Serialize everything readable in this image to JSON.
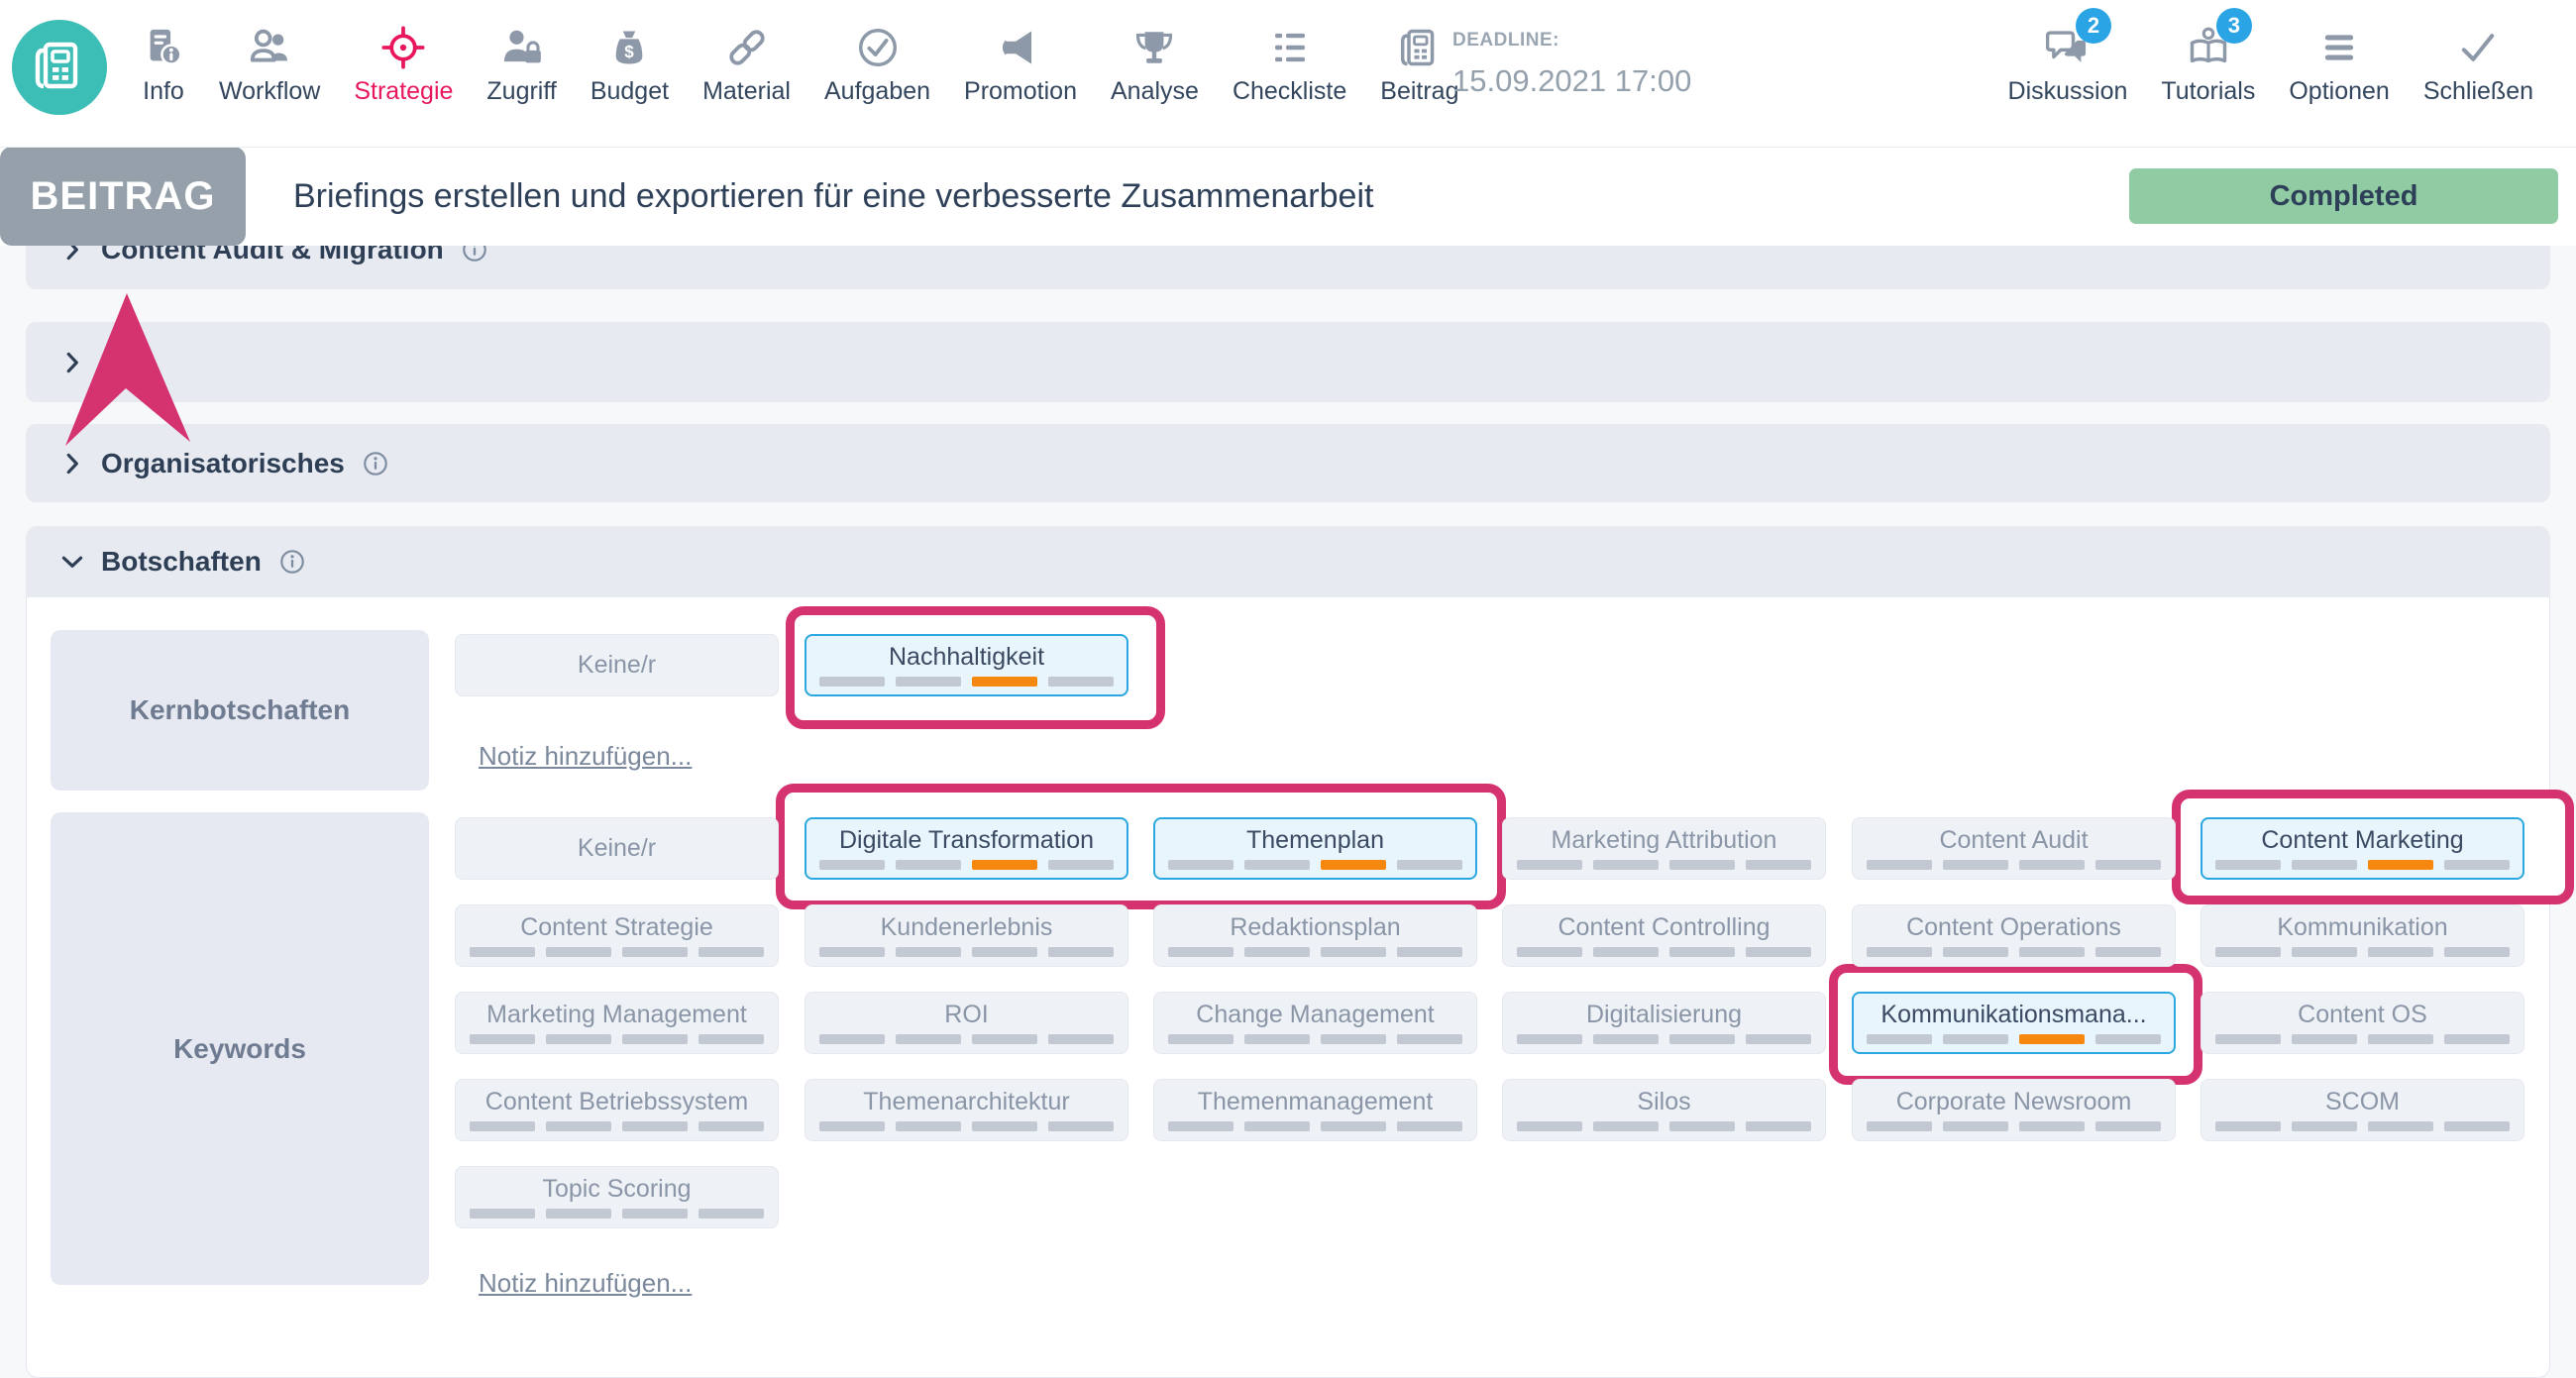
{
  "toolbar": {
    "items": [
      {
        "id": "info",
        "label": "Info",
        "icon": "info-doc",
        "active": false
      },
      {
        "id": "workflow",
        "label": "Workflow",
        "icon": "people",
        "active": false
      },
      {
        "id": "strategie",
        "label": "Strategie",
        "icon": "target",
        "active": true
      },
      {
        "id": "zugriff",
        "label": "Zugriff",
        "icon": "person-lock",
        "active": false
      },
      {
        "id": "budget",
        "label": "Budget",
        "icon": "money-bag",
        "active": false
      },
      {
        "id": "material",
        "label": "Material",
        "icon": "chain",
        "active": false
      },
      {
        "id": "aufgaben",
        "label": "Aufgaben",
        "icon": "check-circle",
        "active": false
      },
      {
        "id": "promotion",
        "label": "Promotion",
        "icon": "megaphone",
        "active": false
      },
      {
        "id": "analyse",
        "label": "Analyse",
        "icon": "trophy",
        "active": false
      },
      {
        "id": "checkliste",
        "label": "Checkliste",
        "icon": "list",
        "active": false
      },
      {
        "id": "beitrag",
        "label": "Beitrag",
        "icon": "newspaper",
        "active": false
      }
    ],
    "deadline": {
      "label": "DEADLINE:",
      "value": "15.09.2021 17:00"
    },
    "right_items": [
      {
        "id": "diskussion",
        "label": "Diskussion",
        "icon": "chat",
        "badge": "2"
      },
      {
        "id": "tutorials",
        "label": "Tutorials",
        "icon": "book-person",
        "badge": "3"
      },
      {
        "id": "optionen",
        "label": "Optionen",
        "icon": "menu",
        "badge": ""
      },
      {
        "id": "schliessen",
        "label": "Schließen",
        "icon": "check",
        "badge": ""
      }
    ]
  },
  "title_bar": {
    "badge": "BEITRAG",
    "title": "Briefings erstellen und exportieren für eine verbesserte Zusammenarbeit",
    "status": "Completed"
  },
  "sections": [
    {
      "label": "Content Audit & Migration",
      "info": true
    },
    {
      "label": "C",
      "info": false
    },
    {
      "label": "Organisatorisches",
      "info": true
    }
  ],
  "botschaften": {
    "label": "Botschaften",
    "kernbotschaften": {
      "row_label": "Kernbotschaften",
      "tags": [
        {
          "label": "Keine/r",
          "state": "plain"
        },
        {
          "label": "Nachhaltigkeit",
          "state": "selected"
        }
      ],
      "note_link": "Notiz hinzufügen..."
    },
    "keywords": {
      "row_label": "Keywords",
      "rows": [
        [
          {
            "label": "Keine/r",
            "state": "plain"
          },
          {
            "label": "Digitale Transformation",
            "state": "selected"
          },
          {
            "label": "Themenplan",
            "state": "selected"
          },
          {
            "label": "Marketing Attribution",
            "state": "default"
          },
          {
            "label": "Content Audit",
            "state": "default"
          },
          {
            "label": "Content Marketing",
            "state": "selected"
          }
        ],
        [
          {
            "label": "Content Strategie",
            "state": "default"
          },
          {
            "label": "Kundenerlebnis",
            "state": "default"
          },
          {
            "label": "Redaktionsplan",
            "state": "default"
          },
          {
            "label": "Content Controlling",
            "state": "default"
          },
          {
            "label": "Content Operations",
            "state": "default"
          },
          {
            "label": "Kommunikation",
            "state": "default"
          }
        ],
        [
          {
            "label": "Marketing Management",
            "state": "default"
          },
          {
            "label": "ROI",
            "state": "default"
          },
          {
            "label": "Change Management",
            "state": "default"
          },
          {
            "label": "Digitalisierung",
            "state": "default"
          },
          {
            "label": "Kommunikationsmana...",
            "state": "selected"
          },
          {
            "label": "Content OS",
            "state": "default"
          }
        ],
        [
          {
            "label": "Content Betriebssystem",
            "state": "default"
          },
          {
            "label": "Themenarchitektur",
            "state": "default"
          },
          {
            "label": "Themenmanagement",
            "state": "default"
          },
          {
            "label": "Silos",
            "state": "default"
          },
          {
            "label": "Corporate Newsroom",
            "state": "default"
          },
          {
            "label": "SCOM",
            "state": "default"
          }
        ],
        [
          {
            "label": "Topic Scoring",
            "state": "default"
          }
        ]
      ],
      "note_link": "Notiz hinzufügen..."
    }
  },
  "annotations": {
    "highlight_color": "#d5336f",
    "arrow_points_to": "BEITRAG",
    "highlighted_tags": [
      "Nachhaltigkeit",
      "Digitale Transformation",
      "Themenplan",
      "Content Marketing",
      "Kommunikationsmana..."
    ]
  },
  "colors": {
    "brand_teal": "#3cbdb5",
    "active_nav_pink": "#e8175d",
    "annotation_pink": "#d5336f",
    "selected_border_blue": "#2aa7e1",
    "selected_bg_blue": "#e9f5fc",
    "status_green": "#90cba4",
    "badge_blue": "#2aa4e4",
    "bar_orange": "#f6870f"
  }
}
